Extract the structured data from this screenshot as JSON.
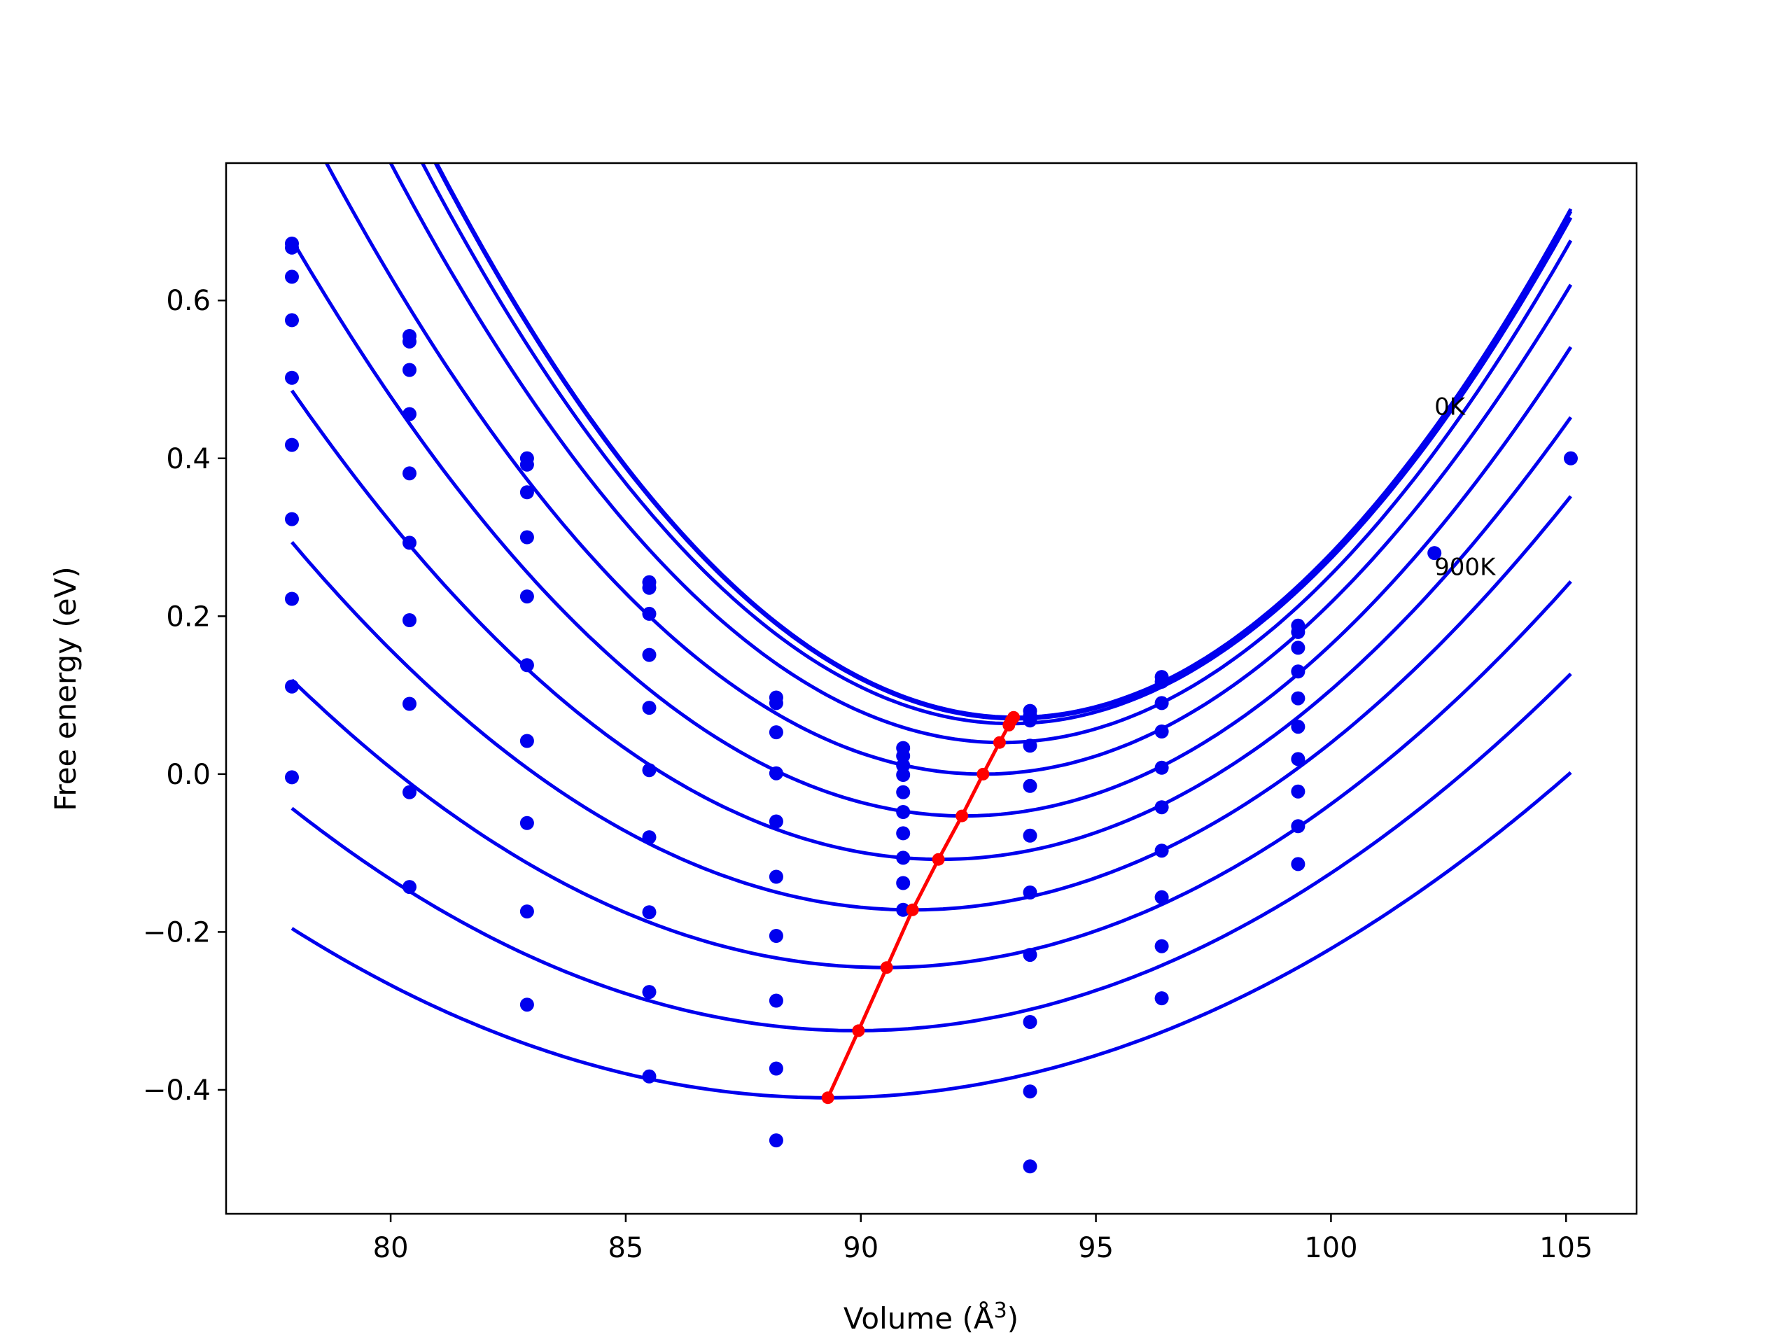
{
  "chart_data": {
    "type": "line",
    "xlabel": "Volume (Å",
    "xlabel_sup": "3",
    "xlabel_close": ")",
    "ylabel": "Free energy (eV)",
    "xlim": [
      76.5,
      106.5
    ],
    "ylim": [
      -0.557,
      0.774
    ],
    "xticks": [
      {
        "value": 80,
        "label": "80"
      },
      {
        "value": 85,
        "label": "85"
      },
      {
        "value": 90,
        "label": "90"
      },
      {
        "value": 95,
        "label": "95"
      },
      {
        "value": 100,
        "label": "100"
      },
      {
        "value": 105,
        "label": "105"
      }
    ],
    "yticks": [
      {
        "value": 0.6,
        "label": "0.6"
      },
      {
        "value": 0.4,
        "label": "0.4"
      },
      {
        "value": 0.2,
        "label": "0.2"
      },
      {
        "value": 0.0,
        "label": "0.0"
      },
      {
        "value": -0.2,
        "label": "−0.2"
      },
      {
        "value": -0.4,
        "label": "−0.4"
      }
    ],
    "grid": false,
    "colors": {
      "curves": "#0000ee",
      "points": "#0000ee",
      "minima": "#ff0000"
    },
    "annotations": [
      {
        "text": "0K",
        "x": 102.2,
        "y": 0.455
      },
      {
        "text": "900K",
        "x": 102.2,
        "y": 0.252
      }
    ],
    "volumes": [
      77.9,
      80.4,
      82.9,
      85.5,
      88.2,
      90.9,
      93.6,
      96.4,
      99.3,
      102.2,
      105.1
    ],
    "fit_range": [
      77.9,
      105.1
    ],
    "curves": [
      {
        "vmin": 93.3,
        "fmin": 0.072,
        "upper": 0.716
      },
      {
        "vmin": 93.3,
        "fmin": 0.07,
        "upper": 0.713
      },
      {
        "vmin": 93.2,
        "fmin": 0.064,
        "upper": 0.705
      },
      {
        "vmin": 93.0,
        "fmin": 0.04,
        "upper": 0.676
      },
      {
        "vmin": 92.6,
        "fmin": 0.0,
        "upper": 0.62
      },
      {
        "vmin": 92.2,
        "fmin": -0.053,
        "upper": 0.541
      },
      {
        "vmin": 91.7,
        "fmin": -0.108,
        "upper": 0.452
      },
      {
        "vmin": 91.1,
        "fmin": -0.172,
        "upper": 0.352
      },
      {
        "vmin": 90.5,
        "fmin": -0.245,
        "upper": 0.244
      },
      {
        "vmin": 89.9,
        "fmin": -0.325,
        "upper": 0.127
      },
      {
        "vmin": 89.3,
        "fmin": -0.41,
        "upper": 0.002
      }
    ],
    "minima": [
      {
        "x": 93.25,
        "y": 0.072
      },
      {
        "x": 93.2,
        "y": 0.068
      },
      {
        "x": 93.15,
        "y": 0.062
      },
      {
        "x": 92.95,
        "y": 0.04
      },
      {
        "x": 92.6,
        "y": 0.0
      },
      {
        "x": 92.15,
        "y": -0.053
      },
      {
        "x": 91.65,
        "y": -0.108
      },
      {
        "x": 91.1,
        "y": -0.172
      },
      {
        "x": 90.55,
        "y": -0.245
      },
      {
        "x": 89.95,
        "y": -0.325
      },
      {
        "x": 89.3,
        "y": -0.41
      }
    ],
    "points": [
      {
        "x": 77.9,
        "y": 0.672
      },
      {
        "x": 77.9,
        "y": 0.667
      },
      {
        "x": 77.9,
        "y": 0.63
      },
      {
        "x": 77.9,
        "y": 0.575
      },
      {
        "x": 77.9,
        "y": 0.502
      },
      {
        "x": 77.9,
        "y": 0.417
      },
      {
        "x": 77.9,
        "y": 0.323
      },
      {
        "x": 77.9,
        "y": 0.222
      },
      {
        "x": 77.9,
        "y": 0.111
      },
      {
        "x": 77.9,
        "y": -0.004
      },
      {
        "x": 80.4,
        "y": 0.555
      },
      {
        "x": 80.4,
        "y": 0.548
      },
      {
        "x": 80.4,
        "y": 0.512
      },
      {
        "x": 80.4,
        "y": 0.456
      },
      {
        "x": 80.4,
        "y": 0.381
      },
      {
        "x": 80.4,
        "y": 0.293
      },
      {
        "x": 80.4,
        "y": 0.195
      },
      {
        "x": 80.4,
        "y": 0.089
      },
      {
        "x": 80.4,
        "y": -0.023
      },
      {
        "x": 80.4,
        "y": -0.143
      },
      {
        "x": 82.9,
        "y": 0.4
      },
      {
        "x": 82.9,
        "y": 0.392
      },
      {
        "x": 82.9,
        "y": 0.357
      },
      {
        "x": 82.9,
        "y": 0.3
      },
      {
        "x": 82.9,
        "y": 0.225
      },
      {
        "x": 82.9,
        "y": 0.138
      },
      {
        "x": 82.9,
        "y": 0.042
      },
      {
        "x": 82.9,
        "y": -0.062
      },
      {
        "x": 82.9,
        "y": -0.174
      },
      {
        "x": 82.9,
        "y": -0.292
      },
      {
        "x": 85.5,
        "y": 0.243
      },
      {
        "x": 85.5,
        "y": 0.236
      },
      {
        "x": 85.5,
        "y": 0.203
      },
      {
        "x": 85.5,
        "y": 0.151
      },
      {
        "x": 85.5,
        "y": 0.084
      },
      {
        "x": 85.5,
        "y": 0.005
      },
      {
        "x": 85.5,
        "y": -0.08
      },
      {
        "x": 85.5,
        "y": -0.175
      },
      {
        "x": 85.5,
        "y": -0.276
      },
      {
        "x": 85.5,
        "y": -0.383
      },
      {
        "x": 88.2,
        "y": 0.097
      },
      {
        "x": 88.2,
        "y": 0.09
      },
      {
        "x": 88.2,
        "y": 0.053
      },
      {
        "x": 88.2,
        "y": 0.001
      },
      {
        "x": 88.2,
        "y": -0.06
      },
      {
        "x": 88.2,
        "y": -0.13
      },
      {
        "x": 88.2,
        "y": -0.205
      },
      {
        "x": 88.2,
        "y": -0.287
      },
      {
        "x": 88.2,
        "y": -0.373
      },
      {
        "x": 88.2,
        "y": -0.464
      },
      {
        "x": 90.9,
        "y": 0.033
      },
      {
        "x": 90.9,
        "y": 0.023
      },
      {
        "x": 90.9,
        "y": 0.011
      },
      {
        "x": 90.9,
        "y": -0.001
      },
      {
        "x": 90.9,
        "y": -0.023
      },
      {
        "x": 90.9,
        "y": -0.048
      },
      {
        "x": 90.9,
        "y": -0.075
      },
      {
        "x": 90.9,
        "y": -0.106
      },
      {
        "x": 90.9,
        "y": -0.138
      },
      {
        "x": 90.9,
        "y": -0.172
      },
      {
        "x": 93.6,
        "y": 0.08
      },
      {
        "x": 93.6,
        "y": 0.074
      },
      {
        "x": 93.6,
        "y": 0.068
      },
      {
        "x": 93.6,
        "y": 0.036
      },
      {
        "x": 93.6,
        "y": -0.015
      },
      {
        "x": 93.6,
        "y": -0.078
      },
      {
        "x": 93.6,
        "y": -0.15
      },
      {
        "x": 93.6,
        "y": -0.229
      },
      {
        "x": 93.6,
        "y": -0.314
      },
      {
        "x": 93.6,
        "y": -0.402
      },
      {
        "x": 93.6,
        "y": -0.497
      },
      {
        "x": 96.4,
        "y": 0.123
      },
      {
        "x": 96.4,
        "y": 0.117
      },
      {
        "x": 96.4,
        "y": 0.09
      },
      {
        "x": 96.4,
        "y": 0.054
      },
      {
        "x": 96.4,
        "y": 0.008
      },
      {
        "x": 96.4,
        "y": -0.042
      },
      {
        "x": 96.4,
        "y": -0.097
      },
      {
        "x": 96.4,
        "y": -0.156
      },
      {
        "x": 96.4,
        "y": -0.218
      },
      {
        "x": 96.4,
        "y": -0.284
      },
      {
        "x": 99.3,
        "y": 0.188
      },
      {
        "x": 99.3,
        "y": 0.18
      },
      {
        "x": 99.3,
        "y": 0.16
      },
      {
        "x": 99.3,
        "y": 0.13
      },
      {
        "x": 99.3,
        "y": 0.096
      },
      {
        "x": 99.3,
        "y": 0.06
      },
      {
        "x": 99.3,
        "y": 0.019
      },
      {
        "x": 99.3,
        "y": -0.022
      },
      {
        "x": 99.3,
        "y": -0.066
      },
      {
        "x": 99.3,
        "y": -0.114
      },
      {
        "x": 102.2,
        "y": 0.28
      },
      {
        "x": 105.1,
        "y": 0.4
      }
    ]
  }
}
